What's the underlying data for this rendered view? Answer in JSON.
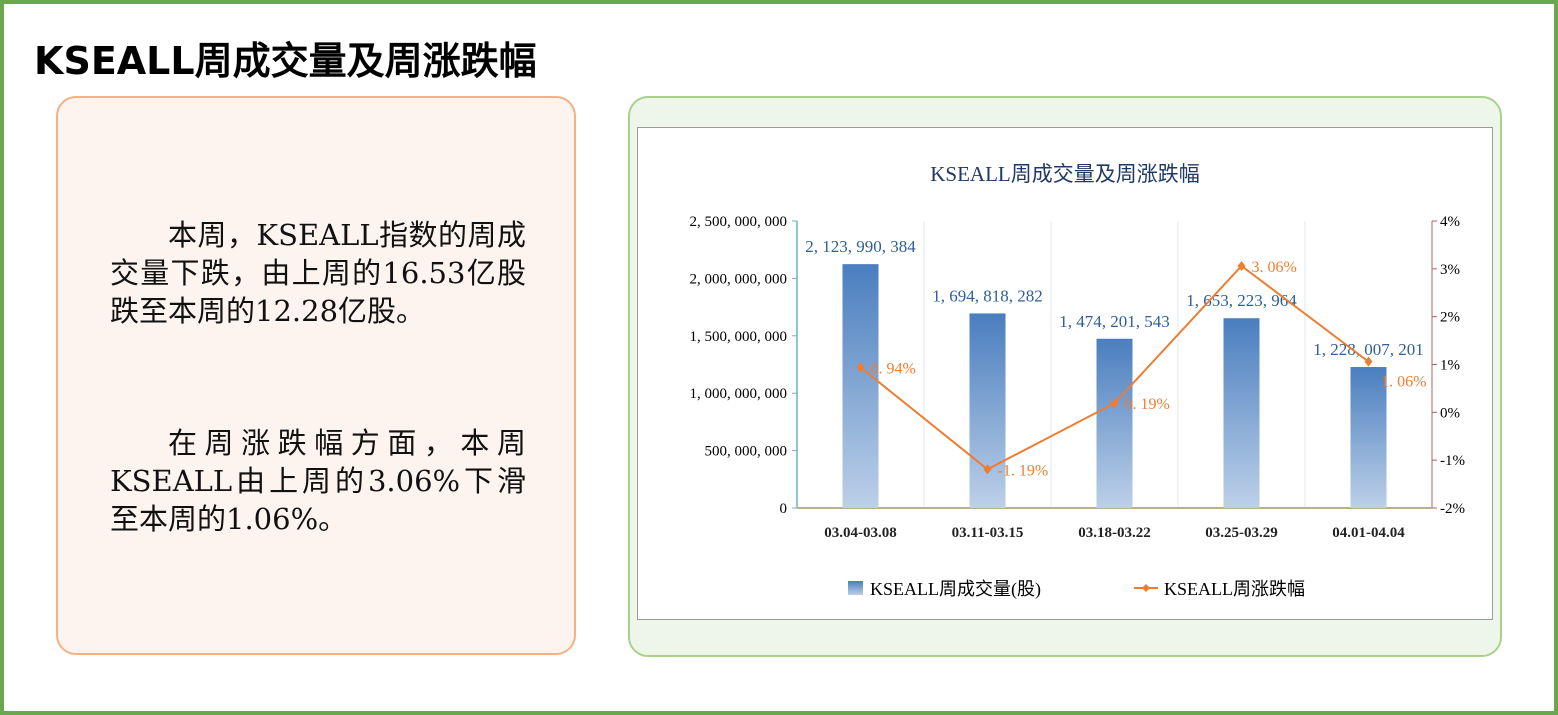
{
  "slide_title": "KSEALL周成交量及周涨跌幅",
  "summary": {
    "paragraphs": [
      "本周，KSEALL指数的周成交量下跌，由上周的16.53亿股跌至本周的12.28亿股。",
      "在周涨跌幅方面，本周KSEALL由上周的3.06%下滑至本周的1.06%。"
    ]
  },
  "colors": {
    "frame": "#6aa84f",
    "bar": "#4f81bd",
    "line": "#ed7d31",
    "title": "#1f3864"
  },
  "chart_data": {
    "type": "bar+line",
    "title": "KSEALL周成交量及周涨跌幅",
    "categories": [
      "03.04-03.08",
      "03.11-03.15",
      "03.18-03.22",
      "03.25-03.29",
      "04.01-04.04"
    ],
    "series": [
      {
        "name": "KSEALL周成交量(股)",
        "type": "bar",
        "axis": "left",
        "values": [
          2123990384,
          1694818282,
          1474201543,
          1653223964,
          1228007201
        ],
        "labels": [
          "2, 123, 990, 384",
          "1, 694, 818, 282",
          "1, 474, 201, 543",
          "1, 653, 223, 964",
          "1, 228, 007, 201"
        ]
      },
      {
        "name": "KSEALL周涨跌幅",
        "type": "line",
        "axis": "right",
        "values": [
          0.94,
          -1.19,
          0.19,
          3.06,
          1.06
        ],
        "labels": [
          "0. 94%",
          "-1. 19%",
          "0. 19%",
          "3. 06%",
          "1. 06%"
        ]
      }
    ],
    "y_left": {
      "range": [
        0,
        2500000000
      ],
      "ticks": [
        "0",
        "500, 000, 000",
        "1, 000, 000, 000",
        "1, 500, 000, 000",
        "2, 000, 000, 000",
        "2, 500, 000, 000"
      ]
    },
    "y_right": {
      "range": [
        -2,
        4
      ],
      "ticks": [
        "-2%",
        "-1%",
        "0%",
        "1%",
        "2%",
        "3%",
        "4%"
      ]
    },
    "grid": "vertical",
    "legend": "bottom"
  }
}
